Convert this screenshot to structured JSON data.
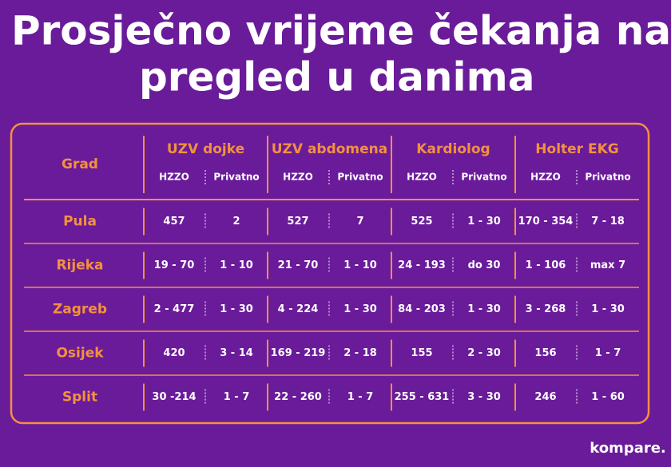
{
  "title": [
    "Prosječno vrijeme čekanja na",
    "pregled u danima"
  ],
  "table": {
    "first_header": "Grad",
    "groups": [
      {
        "name": "UZV dojke",
        "sub": [
          "HZZO",
          "Privatno"
        ]
      },
      {
        "name": "UZV abdomena",
        "sub": [
          "HZZO",
          "Privatno"
        ]
      },
      {
        "name": "Kardiolog",
        "sub": [
          "HZZO",
          "Privatno"
        ]
      },
      {
        "name": "Holter EKG",
        "sub": [
          "HZZO",
          "Privatno"
        ]
      }
    ],
    "rows": [
      {
        "city": "Pula",
        "cells": [
          "457",
          "2",
          "527",
          "7",
          "525",
          "1 - 30",
          "170 - 354",
          "7 - 18"
        ]
      },
      {
        "city": "Rijeka",
        "cells": [
          "19 - 70",
          "1 - 10",
          "21 - 70",
          "1 - 10",
          "24 - 193",
          "do 30",
          "1 - 106",
          "max 7"
        ]
      },
      {
        "city": "Zagreb",
        "cells": [
          "2 - 477",
          "1 - 30",
          "4 - 224",
          "1 - 30",
          "84 - 203",
          "1 - 30",
          "3 - 268",
          "1 - 30"
        ]
      },
      {
        "city": "Osijek",
        "cells": [
          "420",
          "3 - 14",
          "169 - 219",
          "2 - 18",
          "155",
          "2 - 30",
          "156",
          "1 - 7"
        ]
      },
      {
        "city": "Split",
        "cells": [
          "30 -214",
          "1 - 7",
          "22 - 260",
          "1 - 7",
          "255 - 631",
          "3 - 30",
          "246",
          "1 - 60"
        ]
      }
    ]
  },
  "logo": "kompare."
}
